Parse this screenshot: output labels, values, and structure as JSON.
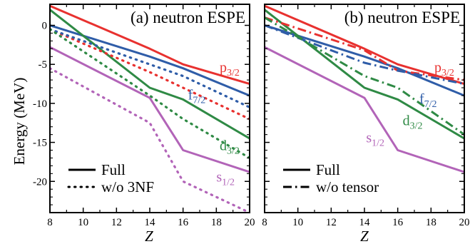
{
  "figure": {
    "ylabel": "Energy (MeV)",
    "xlabel": "Z"
  },
  "chart_data": [
    {
      "type": "line",
      "title": "(a) neutron ESPE",
      "xlabel": "Z",
      "ylabel": "Energy (MeV)",
      "xlim": [
        8,
        20
      ],
      "ylim": [
        -24,
        2.7
      ],
      "x_ticks": [
        8,
        10,
        12,
        14,
        16,
        18,
        20
      ],
      "y_ticks": [
        0,
        -5,
        -10,
        -15,
        -20
      ],
      "grid": false,
      "legend": {
        "position": "bottom-left",
        "entries": [
          {
            "label": "Full",
            "style": "solid"
          },
          {
            "label": "w/o 3NF",
            "style": "dotted"
          }
        ]
      },
      "series": [
        {
          "name": "p3/2",
          "orbital": "p",
          "sub": "3/2",
          "color": "#e8312f",
          "style": "solid",
          "x": [
            8,
            14,
            16,
            20
          ],
          "y": [
            2.5,
            -3.0,
            -5.0,
            -7.5
          ]
        },
        {
          "name": "f7/2",
          "orbital": "f",
          "sub": "7/2",
          "color": "#2f5da8",
          "style": "solid",
          "x": [
            8,
            14,
            16,
            20
          ],
          "y": [
            0.0,
            -4.0,
            -5.5,
            -9.0
          ]
        },
        {
          "name": "d3/2",
          "orbital": "d",
          "sub": "3/2",
          "color": "#2f8a45",
          "style": "solid",
          "x": [
            8,
            14,
            16,
            20
          ],
          "y": [
            2.0,
            -8.0,
            -9.5,
            -14.5
          ]
        },
        {
          "name": "s1/2",
          "orbital": "s",
          "sub": "1/2",
          "color": "#b264b8",
          "style": "solid",
          "x": [
            8,
            14,
            16,
            20
          ],
          "y": [
            -2.8,
            -9.3,
            -16.0,
            -18.8
          ]
        },
        {
          "name": "p3/2 w/o 3NF",
          "color": "#e8312f",
          "style": "dotted",
          "x": [
            8,
            14,
            16,
            20
          ],
          "y": [
            -0.5,
            -6.0,
            -8.0,
            -12.0
          ]
        },
        {
          "name": "f7/2 w/o 3NF",
          "color": "#2f5da8",
          "style": "dotted",
          "x": [
            8,
            14,
            16,
            20
          ],
          "y": [
            -0.5,
            -5.0,
            -6.5,
            -10.5
          ]
        },
        {
          "name": "d3/2 w/o 3NF",
          "color": "#2f8a45",
          "style": "dotted",
          "x": [
            8,
            14,
            16,
            20
          ],
          "y": [
            -0.5,
            -9.0,
            -12.0,
            -17.0
          ]
        },
        {
          "name": "s1/2 w/o 3NF",
          "color": "#b264b8",
          "style": "dotted",
          "x": [
            8,
            14,
            16,
            20
          ],
          "y": [
            -5.5,
            -12.5,
            -20.0,
            -24.0
          ]
        }
      ],
      "labels": [
        {
          "series": "p3/2",
          "orbital": "p",
          "sub": "3/2",
          "color": "#e8312f",
          "x": 18.2,
          "y": -6.0
        },
        {
          "series": "f7/2",
          "orbital": "f",
          "sub": "7/2",
          "color": "#2f5da8",
          "x": 16.3,
          "y": -9.5
        },
        {
          "series": "d3/2",
          "orbital": "d",
          "sub": "3/2",
          "color": "#2f8a45",
          "x": 18.2,
          "y": -16.0
        },
        {
          "series": "s1/2",
          "orbital": "s",
          "sub": "1/2",
          "color": "#b264b8",
          "x": 18.0,
          "y": -20.0
        }
      ]
    },
    {
      "type": "line",
      "title": "(b) neutron ESPE",
      "xlabel": "Z",
      "ylabel": "",
      "xlim": [
        8,
        20
      ],
      "ylim": [
        -24,
        2.7
      ],
      "x_ticks": [
        8,
        10,
        12,
        14,
        16,
        18,
        20
      ],
      "y_ticks": [
        0,
        -5,
        -10,
        -15,
        -20
      ],
      "grid": false,
      "legend": {
        "position": "bottom-left",
        "entries": [
          {
            "label": "Full",
            "style": "solid"
          },
          {
            "label": "w/o tensor",
            "style": "dashdot"
          }
        ]
      },
      "series": [
        {
          "name": "p3/2",
          "orbital": "p",
          "sub": "3/2",
          "color": "#e8312f",
          "style": "solid",
          "x": [
            8,
            14,
            16,
            20
          ],
          "y": [
            2.5,
            -3.0,
            -5.0,
            -7.5
          ]
        },
        {
          "name": "f7/2",
          "orbital": "f",
          "sub": "7/2",
          "color": "#2f5da8",
          "style": "solid",
          "x": [
            8,
            14,
            16,
            20
          ],
          "y": [
            0.0,
            -4.0,
            -5.5,
            -9.0
          ]
        },
        {
          "name": "d3/2",
          "orbital": "d",
          "sub": "3/2",
          "color": "#2f8a45",
          "style": "solid",
          "x": [
            8,
            14,
            16,
            20
          ],
          "y": [
            2.0,
            -8.0,
            -9.5,
            -14.5
          ]
        },
        {
          "name": "s1/2",
          "orbital": "s",
          "sub": "1/2",
          "color": "#b264b8",
          "style": "solid",
          "x": [
            8,
            14,
            16,
            20
          ],
          "y": [
            -2.8,
            -9.3,
            -16.0,
            -18.8
          ]
        },
        {
          "name": "p3/2 w/o tensor",
          "color": "#e8312f",
          "style": "dashdot",
          "x": [
            8,
            14,
            16,
            20
          ],
          "y": [
            1.0,
            -3.2,
            -5.8,
            -7.0
          ]
        },
        {
          "name": "f7/2 w/o tensor",
          "color": "#2f5da8",
          "style": "dashdot",
          "x": [
            8,
            14,
            16,
            20
          ],
          "y": [
            0.0,
            -4.8,
            -5.8,
            -7.5
          ]
        },
        {
          "name": "d3/2 w/o tensor",
          "color": "#2f8a45",
          "style": "dashdot",
          "x": [
            8,
            14,
            16,
            20
          ],
          "y": [
            1.0,
            -6.5,
            -8.0,
            -14.0
          ]
        }
      ],
      "labels": [
        {
          "series": "p3/2",
          "orbital": "p",
          "sub": "3/2",
          "color": "#e8312f",
          "x": 18.2,
          "y": -6.0
        },
        {
          "series": "f7/2",
          "orbital": "f",
          "sub": "7/2",
          "color": "#2f5da8",
          "x": 17.3,
          "y": -10.0
        },
        {
          "series": "d3/2",
          "orbital": "d",
          "sub": "3/2",
          "color": "#2f8a45",
          "x": 16.3,
          "y": -12.8
        },
        {
          "series": "s1/2",
          "orbital": "s",
          "sub": "1/2",
          "color": "#b264b8",
          "x": 14.1,
          "y": -15.0
        }
      ]
    }
  ]
}
